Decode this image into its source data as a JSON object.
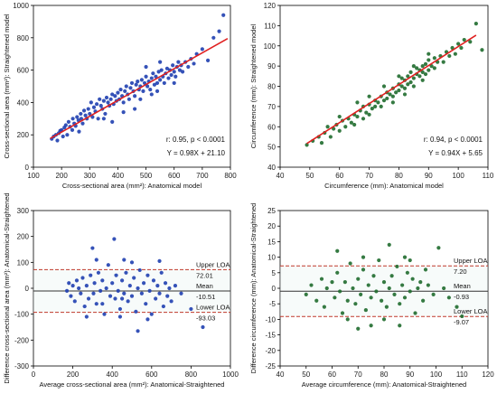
{
  "colors": {
    "blue": "#1f3fb0",
    "green": "#1f6b2e",
    "fit": "#e02020",
    "loa": "#c0392b",
    "mean": "#333333"
  },
  "chart_data": [
    {
      "type": "scatter",
      "title": "",
      "xlabel": "Cross-sectional area (mm²): Anatomical model",
      "ylabel": "Cross-sectional area (mm²): Straightened model",
      "xlim": [
        100,
        800
      ],
      "ylim": [
        0,
        1000
      ],
      "xticks": [
        100,
        200,
        300,
        400,
        500,
        600,
        700,
        800
      ],
      "yticks": [
        0,
        200,
        400,
        600,
        800,
        1000
      ],
      "grid": false,
      "color_key": "blue",
      "fit": {
        "slope": 0.98,
        "intercept": 21.1,
        "x_range": [
          160,
          790
        ]
      },
      "annotations": [
        "r: 0.95, p < 0.0001",
        "Y = 0.98X + 21.10"
      ],
      "points": [
        [
          165,
          175
        ],
        [
          172,
          190
        ],
        [
          180,
          200
        ],
        [
          185,
          165
        ],
        [
          190,
          210
        ],
        [
          195,
          225
        ],
        [
          200,
          230
        ],
        [
          205,
          190
        ],
        [
          210,
          245
        ],
        [
          215,
          260
        ],
        [
          220,
          200
        ],
        [
          225,
          280
        ],
        [
          230,
          250
        ],
        [
          238,
          230
        ],
        [
          240,
          300
        ],
        [
          245,
          270
        ],
        [
          250,
          255
        ],
        [
          255,
          310
        ],
        [
          260,
          290
        ],
        [
          262,
          220
        ],
        [
          268,
          330
        ],
        [
          270,
          300
        ],
        [
          275,
          270
        ],
        [
          280,
          350
        ],
        [
          285,
          320
        ],
        [
          290,
          300
        ],
        [
          295,
          360
        ],
        [
          300,
          330
        ],
        [
          305,
          400
        ],
        [
          310,
          310
        ],
        [
          315,
          370
        ],
        [
          320,
          345
        ],
        [
          325,
          390
        ],
        [
          330,
          300
        ],
        [
          335,
          420
        ],
        [
          340,
          380
        ],
        [
          345,
          360
        ],
        [
          350,
          410
        ],
        [
          355,
          330
        ],
        [
          360,
          430
        ],
        [
          365,
          400
        ],
        [
          370,
          380
        ],
        [
          375,
          420
        ],
        [
          380,
          450
        ],
        [
          385,
          390
        ],
        [
          390,
          440
        ],
        [
          395,
          410
        ],
        [
          400,
          460
        ],
        [
          405,
          420
        ],
        [
          410,
          480
        ],
        [
          415,
          440
        ],
        [
          420,
          400
        ],
        [
          425,
          470
        ],
        [
          430,
          500
        ],
        [
          435,
          450
        ],
        [
          440,
          420
        ],
        [
          445,
          490
        ],
        [
          450,
          520
        ],
        [
          455,
          470
        ],
        [
          460,
          440
        ],
        [
          465,
          510
        ],
        [
          470,
          530
        ],
        [
          475,
          480
        ],
        [
          480,
          500
        ],
        [
          485,
          540
        ],
        [
          490,
          470
        ],
        [
          495,
          520
        ],
        [
          500,
          560
        ],
        [
          505,
          500
        ],
        [
          510,
          530
        ],
        [
          515,
          480
        ],
        [
          520,
          550
        ],
        [
          525,
          580
        ],
        [
          530,
          510
        ],
        [
          535,
          560
        ],
        [
          540,
          520
        ],
        [
          545,
          590
        ],
        [
          550,
          540
        ],
        [
          555,
          600
        ],
        [
          560,
          560
        ],
        [
          565,
          520
        ],
        [
          570,
          580
        ],
        [
          575,
          610
        ],
        [
          580,
          550
        ],
        [
          585,
          600
        ],
        [
          590,
          570
        ],
        [
          595,
          630
        ],
        [
          600,
          590
        ],
        [
          605,
          560
        ],
        [
          610,
          620
        ],
        [
          615,
          650
        ],
        [
          620,
          600
        ],
        [
          625,
          630
        ],
        [
          630,
          590
        ],
        [
          640,
          650
        ],
        [
          650,
          620
        ],
        [
          660,
          670
        ],
        [
          670,
          640
        ],
        [
          680,
          700
        ],
        [
          700,
          730
        ],
        [
          720,
          660
        ],
        [
          740,
          800
        ],
        [
          760,
          840
        ],
        [
          775,
          940
        ],
        [
          420,
          340
        ],
        [
          500,
          620
        ],
        [
          550,
          650
        ],
        [
          380,
          280
        ],
        [
          460,
          360
        ],
        [
          520,
          450
        ],
        [
          600,
          520
        ],
        [
          480,
          420
        ],
        [
          350,
          300
        ],
        [
          540,
          470
        ]
      ]
    },
    {
      "type": "scatter",
      "title": "",
      "xlabel": "Circumference (mm): Anatomical model",
      "ylabel": "Circumference (mm): Straightened model",
      "xlim": [
        40,
        110
      ],
      "ylim": [
        40,
        120
      ],
      "xticks": [
        40,
        50,
        60,
        70,
        80,
        90,
        100,
        110
      ],
      "yticks": [
        40,
        50,
        60,
        70,
        80,
        90,
        100,
        110,
        120
      ],
      "grid": false,
      "color_key": "green",
      "fit": {
        "slope": 0.94,
        "intercept": 5.65,
        "x_range": [
          49,
          106
        ]
      },
      "annotations": [
        "r: 0.94, p < 0.0001",
        "Y = 0.94X + 5.65"
      ],
      "points": [
        [
          49,
          51
        ],
        [
          51,
          53
        ],
        [
          53,
          55
        ],
        [
          54,
          52
        ],
        [
          55,
          57
        ],
        [
          56,
          60
        ],
        [
          57,
          55
        ],
        [
          58,
          59
        ],
        [
          59,
          61
        ],
        [
          60,
          58
        ],
        [
          61,
          63
        ],
        [
          62,
          60
        ],
        [
          63,
          64
        ],
        [
          64,
          62
        ],
        [
          65,
          66
        ],
        [
          65,
          61
        ],
        [
          66,
          65
        ],
        [
          67,
          68
        ],
        [
          68,
          64
        ],
        [
          68,
          70
        ],
        [
          69,
          67
        ],
        [
          70,
          71
        ],
        [
          70,
          66
        ],
        [
          71,
          69
        ],
        [
          72,
          73
        ],
        [
          72,
          70
        ],
        [
          73,
          72
        ],
        [
          74,
          75
        ],
        [
          74,
          70
        ],
        [
          75,
          73
        ],
        [
          76,
          77
        ],
        [
          76,
          74
        ],
        [
          77,
          76
        ],
        [
          78,
          79
        ],
        [
          78,
          75
        ],
        [
          79,
          77
        ],
        [
          80,
          81
        ],
        [
          80,
          78
        ],
        [
          81,
          80
        ],
        [
          81,
          84
        ],
        [
          82,
          83
        ],
        [
          82,
          79
        ],
        [
          83,
          85
        ],
        [
          83,
          81
        ],
        [
          84,
          82
        ],
        [
          84,
          87
        ],
        [
          85,
          84
        ],
        [
          85,
          80
        ],
        [
          86,
          86
        ],
        [
          86,
          89
        ],
        [
          87,
          85
        ],
        [
          87,
          88
        ],
        [
          88,
          87
        ],
        [
          88,
          90
        ],
        [
          89,
          86
        ],
        [
          89,
          91
        ],
        [
          90,
          88
        ],
        [
          90,
          93
        ],
        [
          91,
          90
        ],
        [
          92,
          89
        ],
        [
          92,
          94
        ],
        [
          93,
          92
        ],
        [
          94,
          95
        ],
        [
          95,
          92
        ],
        [
          96,
          97
        ],
        [
          97,
          95
        ],
        [
          98,
          99
        ],
        [
          99,
          96
        ],
        [
          100,
          101
        ],
        [
          101,
          99
        ],
        [
          102,
          103
        ],
        [
          104,
          102
        ],
        [
          106,
          111
        ],
        [
          108,
          98
        ],
        [
          75,
          80
        ],
        [
          80,
          85
        ],
        [
          85,
          90
        ],
        [
          78,
          72
        ],
        [
          82,
          76
        ],
        [
          88,
          83
        ],
        [
          90,
          96
        ],
        [
          70,
          75
        ],
        [
          66,
          72
        ],
        [
          60,
          65
        ]
      ]
    },
    {
      "type": "scatter",
      "title": "",
      "xlabel": "Average cross-sectional area (mm²): Anatomical-Straightened",
      "ylabel": "Difference cross-sectional area (mm²): Anatomical-Straightened",
      "xlim": [
        0,
        1000
      ],
      "ylim": [
        -300,
        300
      ],
      "xticks": [
        0,
        200,
        400,
        600,
        800,
        1000
      ],
      "yticks": [
        -300,
        -200,
        -100,
        0,
        100,
        200,
        300
      ],
      "grid": false,
      "color_key": "blue",
      "mean": -10.51,
      "upper_loa": 72.01,
      "lower_loa": -93.03,
      "loa_labels": {
        "upper": "Upper LOA",
        "upper_value": "72.01",
        "mean": "Mean",
        "mean_value": "-10.51",
        "lower": "Lower LOA",
        "lower_value": "-93.03"
      },
      "points": [
        [
          170,
          -10
        ],
        [
          180,
          20
        ],
        [
          190,
          -30
        ],
        [
          200,
          10
        ],
        [
          210,
          -50
        ],
        [
          220,
          30
        ],
        [
          230,
          0
        ],
        [
          240,
          -20
        ],
        [
          250,
          40
        ],
        [
          260,
          -70
        ],
        [
          270,
          10
        ],
        [
          280,
          -40
        ],
        [
          290,
          50
        ],
        [
          300,
          155
        ],
        [
          305,
          -20
        ],
        [
          310,
          20
        ],
        [
          320,
          -60
        ],
        [
          330,
          60
        ],
        [
          340,
          -10
        ],
        [
          350,
          30
        ],
        [
          360,
          -100
        ],
        [
          370,
          0
        ],
        [
          380,
          90
        ],
        [
          390,
          -30
        ],
        [
          400,
          20
        ],
        [
          410,
          190
        ],
        [
          415,
          -40
        ],
        [
          420,
          50
        ],
        [
          430,
          -10
        ],
        [
          440,
          -80
        ],
        [
          450,
          30
        ],
        [
          460,
          -20
        ],
        [
          470,
          60
        ],
        [
          480,
          -50
        ],
        [
          490,
          10
        ],
        [
          500,
          -30
        ],
        [
          510,
          40
        ],
        [
          520,
          -90
        ],
        [
          530,
          0
        ],
        [
          540,
          70
        ],
        [
          550,
          -20
        ],
        [
          560,
          20
        ],
        [
          570,
          -60
        ],
        [
          580,
          50
        ],
        [
          590,
          -10
        ],
        [
          600,
          -100
        ],
        [
          610,
          30
        ],
        [
          620,
          -40
        ],
        [
          630,
          10
        ],
        [
          640,
          -20
        ],
        [
          650,
          60
        ],
        [
          660,
          -70
        ],
        [
          670,
          20
        ],
        [
          680,
          -30
        ],
        [
          690,
          0
        ],
        [
          700,
          -50
        ],
        [
          720,
          10
        ],
        [
          750,
          -20
        ],
        [
          800,
          -80
        ],
        [
          860,
          -150
        ],
        [
          640,
          105
        ],
        [
          460,
          110
        ],
        [
          320,
          110
        ],
        [
          530,
          -165
        ],
        [
          270,
          -110
        ],
        [
          580,
          -120
        ],
        [
          440,
          -110
        ],
        [
          500,
          100
        ],
        [
          350,
          -60
        ],
        [
          450,
          -40
        ]
      ]
    },
    {
      "type": "scatter",
      "title": "",
      "xlabel": "Average circumference (mm): Anatomical-Straightened",
      "ylabel": "Difference circumference (mm): Anatomical-Straightened",
      "xlim": [
        40,
        120
      ],
      "ylim": [
        -25,
        25
      ],
      "xticks": [
        40,
        50,
        60,
        70,
        80,
        90,
        100,
        110,
        120
      ],
      "yticks": [
        -25,
        -20,
        -15,
        -10,
        -5,
        0,
        5,
        10,
        15,
        20,
        25
      ],
      "grid": false,
      "color_key": "green",
      "mean": -0.93,
      "upper_loa": 7.2,
      "lower_loa": -9.07,
      "loa_labels": {
        "upper": "Upper LOA",
        "upper_value": "7.20",
        "mean": "Mean",
        "mean_value": "-0.93",
        "lower": "Lower LOA",
        "lower_value": "-9.07"
      },
      "points": [
        [
          50,
          -2
        ],
        [
          52,
          1
        ],
        [
          54,
          -4
        ],
        [
          56,
          3
        ],
        [
          57,
          -6
        ],
        [
          58,
          0
        ],
        [
          60,
          2
        ],
        [
          61,
          -3
        ],
        [
          62,
          5
        ],
        [
          63,
          -1
        ],
        [
          64,
          -8
        ],
        [
          65,
          2
        ],
        [
          66,
          -4
        ],
        [
          67,
          8
        ],
        [
          68,
          0
        ],
        [
          69,
          -5
        ],
        [
          70,
          3
        ],
        [
          71,
          -2
        ],
        [
          72,
          6
        ],
        [
          73,
          -7
        ],
        [
          74,
          1
        ],
        [
          75,
          -3
        ],
        [
          76,
          4
        ],
        [
          77,
          -1
        ],
        [
          78,
          9
        ],
        [
          79,
          -4
        ],
        [
          80,
          2
        ],
        [
          81,
          -6
        ],
        [
          82,
          0
        ],
        [
          83,
          4
        ],
        [
          84,
          -2
        ],
        [
          85,
          7
        ],
        [
          86,
          -5
        ],
        [
          87,
          1
        ],
        [
          88,
          -3
        ],
        [
          89,
          5
        ],
        [
          90,
          -1
        ],
        [
          91,
          3
        ],
        [
          92,
          -8
        ],
        [
          93,
          0
        ],
        [
          94,
          2
        ],
        [
          95,
          -4
        ],
        [
          97,
          1
        ],
        [
          99,
          -2
        ],
        [
          101,
          13
        ],
        [
          103,
          0
        ],
        [
          105,
          -3
        ],
        [
          108,
          -6
        ],
        [
          110,
          -9
        ],
        [
          82,
          14
        ],
        [
          75,
          -12
        ],
        [
          70,
          -13
        ],
        [
          88,
          10
        ],
        [
          62,
          12
        ],
        [
          80,
          -10
        ],
        [
          90,
          9
        ],
        [
          66,
          -10
        ],
        [
          86,
          -12
        ],
        [
          96,
          6
        ],
        [
          72,
          10
        ]
      ]
    }
  ]
}
